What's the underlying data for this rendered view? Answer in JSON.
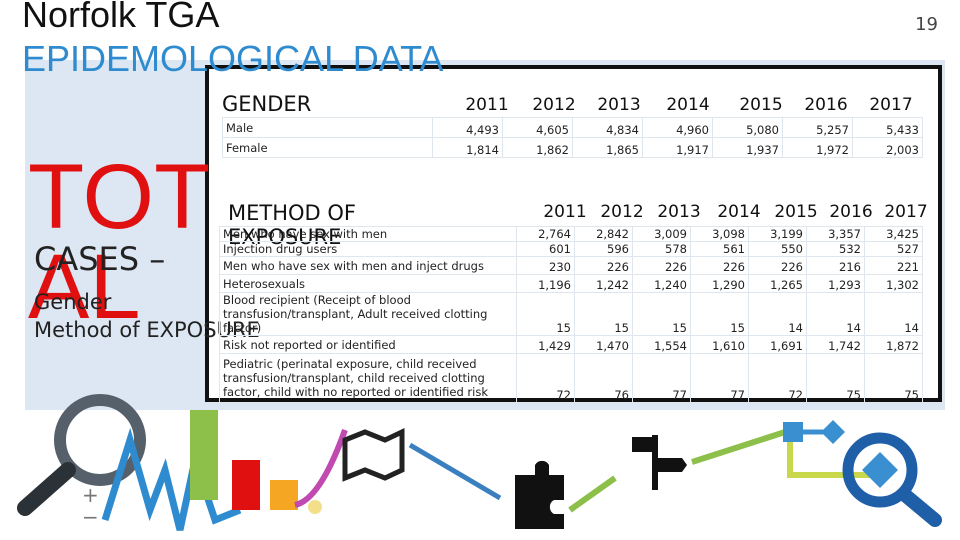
{
  "header": {
    "title": "Norfolk TGA",
    "subtitle": "EPIDEMOLOGICAL DATA",
    "page_number": "19"
  },
  "left_panel": {
    "big_word": "TOTAL",
    "subtitle": "CASES –",
    "items": [
      "Gender",
      "Method of EXPOSURE"
    ]
  },
  "gender_table": {
    "heading": "GENDER",
    "years": [
      "2011",
      "2012",
      "2013",
      "2014",
      "2015",
      "2016",
      "2017"
    ],
    "rows": [
      [
        "Male",
        "4,493",
        "4,605",
        "4,834",
        "4,960",
        "5,080",
        "5,257",
        "5,433"
      ],
      [
        "Female",
        "1,814",
        "1,862",
        "1,865",
        "1,917",
        "1,937",
        "1,972",
        "2,003"
      ]
    ]
  },
  "exposure_table": {
    "heading": "METHOD OF EXPOSURE",
    "years": [
      "2011",
      "2012",
      "2013",
      "2014",
      "2015",
      "2016",
      "2017"
    ],
    "rows": [
      [
        "Men who have sex with men",
        "2,764",
        "2,842",
        "3,009",
        "3,098",
        "3,199",
        "3,357",
        "3,425"
      ],
      [
        "Injection drug users",
        "601",
        "596",
        "578",
        "561",
        "550",
        "532",
        "527"
      ],
      [
        "Men who have sex with men and inject drugs",
        "230",
        "226",
        "226",
        "226",
        "226",
        "216",
        "221"
      ],
      [
        "Heterosexuals",
        "1,196",
        "1,242",
        "1,240",
        "1,290",
        "1,265",
        "1,293",
        "1,302"
      ],
      [
        "Blood recipient (Receipt of blood transfusion/transplant, Adult received clotting factor)",
        "15",
        "15",
        "15",
        "15",
        "14",
        "14",
        "14"
      ],
      [
        "Risk not reported or identified",
        "1,429",
        "1,470",
        "1,554",
        "1,610",
        "1,691",
        "1,742",
        "1,872"
      ],
      [
        "Pediatric (perinatal exposure, child received transfusion/transplant, child received clotting factor, child with no reported or identified risk",
        "72",
        "76",
        "77",
        "77",
        "72",
        "75",
        "75"
      ]
    ]
  }
}
